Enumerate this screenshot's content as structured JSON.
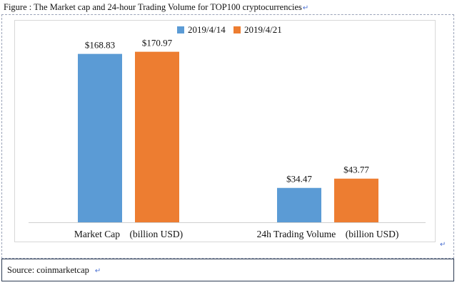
{
  "figure": {
    "caption": "Figure : The Market cap and 24-hour Trading Volume for TOP100 cryptocurrencies",
    "return_glyph": "↵"
  },
  "source": {
    "text": "Source: coinmarketcap"
  },
  "colors": {
    "series_1": "#5b9bd5",
    "series_2": "#ed7d31"
  },
  "chart_data": {
    "type": "bar",
    "categories": [
      "Market Cap　(billion USD)",
      "24h Trading Volume　(billion USD)"
    ],
    "series": [
      {
        "name": "2019/4/14",
        "values": [
          168.83,
          34.47
        ],
        "labels": [
          "$168.83",
          "$34.47"
        ]
      },
      {
        "name": "2019/4/21",
        "values": [
          170.97,
          43.77
        ],
        "labels": [
          "$170.97",
          "$43.77"
        ]
      }
    ],
    "ylim": [
      0,
      180
    ],
    "grid": false,
    "legend": "top-center",
    "title": "",
    "xlabel": "",
    "ylabel": ""
  }
}
